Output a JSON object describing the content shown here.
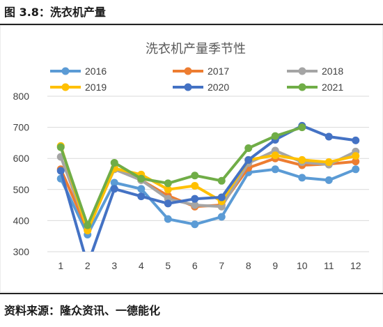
{
  "header": {
    "caption": "图 3.8：洗衣机产量"
  },
  "footer": {
    "source": "资料来源：隆众资讯、一德能化"
  },
  "chart_data": {
    "type": "line",
    "title": "洗衣机产量季节性",
    "xlabel": "",
    "ylabel": "",
    "categories": [
      "1",
      "2",
      "3",
      "4",
      "5",
      "6",
      "7",
      "8",
      "9",
      "10",
      "11",
      "12"
    ],
    "ylim": [
      300,
      800
    ],
    "yticks": [
      300,
      400,
      500,
      600,
      700,
      800
    ],
    "grid": "horizontal",
    "legend_position": "top",
    "series": [
      {
        "name": "2016",
        "color": "#5b9bd5",
        "values": [
          535,
          355,
          522,
          502,
          405,
          388,
          412,
          555,
          565,
          538,
          530,
          565
        ]
      },
      {
        "name": "2017",
        "color": "#ed7d31",
        "values": [
          565,
          370,
          568,
          530,
          480,
          445,
          450,
          570,
          600,
          578,
          582,
          590
        ]
      },
      {
        "name": "2018",
        "color": "#a5a5a5",
        "values": [
          605,
          375,
          565,
          530,
          470,
          450,
          445,
          585,
          625,
          588,
          580,
          622
        ]
      },
      {
        "name": "2019",
        "color": "#ffc000",
        "values": [
          640,
          368,
          568,
          548,
          500,
          512,
          462,
          595,
          610,
          595,
          588,
          608
        ]
      },
      {
        "name": "2020",
        "color": "#4472c4",
        "values": [
          560,
          258,
          502,
          478,
          455,
          470,
          475,
          595,
          660,
          705,
          670,
          658
        ]
      },
      {
        "name": "2021",
        "color": "#70ad47",
        "values": [
          636,
          385,
          586,
          535,
          520,
          545,
          528,
          633,
          672,
          700,
          null,
          null
        ]
      }
    ]
  }
}
